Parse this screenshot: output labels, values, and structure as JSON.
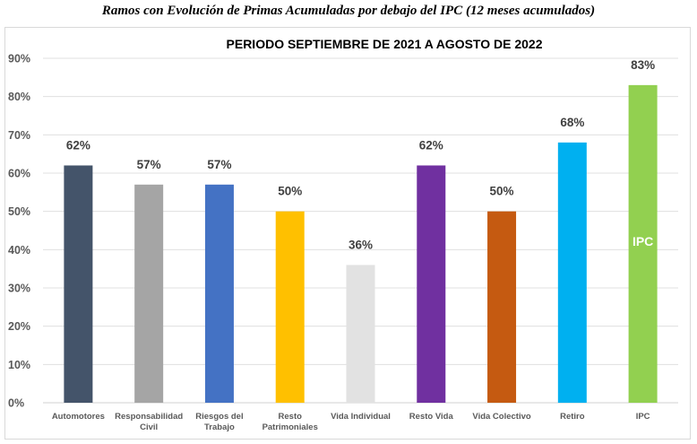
{
  "page": {
    "title": "Ramos con Evolución de Primas Acumuladas por debajo del IPC (12 meses acumulados)"
  },
  "chart_data": {
    "type": "bar",
    "title": "PERIODO SEPTIEMBRE DE 2021 A AGOSTO DE 2022",
    "xlabel": "",
    "ylabel": "",
    "ylim": [
      0,
      90
    ],
    "yticks": [
      "0%",
      "10%",
      "20%",
      "30%",
      "40%",
      "50%",
      "60%",
      "70%",
      "80%",
      "90%"
    ],
    "grid": true,
    "legend": "none",
    "categories": [
      [
        "Automotores"
      ],
      [
        "Responsabilidad",
        "Civil"
      ],
      [
        "Riesgos del",
        "Trabajo"
      ],
      [
        "Resto",
        "Patrimoniales"
      ],
      [
        "Vida Individual"
      ],
      [
        "Resto Vida"
      ],
      [
        "Vida Colectivo"
      ],
      [
        "Retiro"
      ],
      [
        "IPC"
      ]
    ],
    "values": [
      62,
      57,
      57,
      50,
      36,
      62,
      50,
      68,
      83
    ],
    "data_labels": [
      "62%",
      "57%",
      "57%",
      "50%",
      "36%",
      "62%",
      "50%",
      "68%",
      "83%"
    ],
    "colors": [
      "#44546a",
      "#a5a5a5",
      "#4472c4",
      "#ffc000",
      "#e2e2e2",
      "#7030a0",
      "#c55a11",
      "#00b0f0",
      "#92d050"
    ],
    "annotations": [
      {
        "category_index": 8,
        "text": "IPC",
        "position": "inside-bar"
      }
    ]
  }
}
